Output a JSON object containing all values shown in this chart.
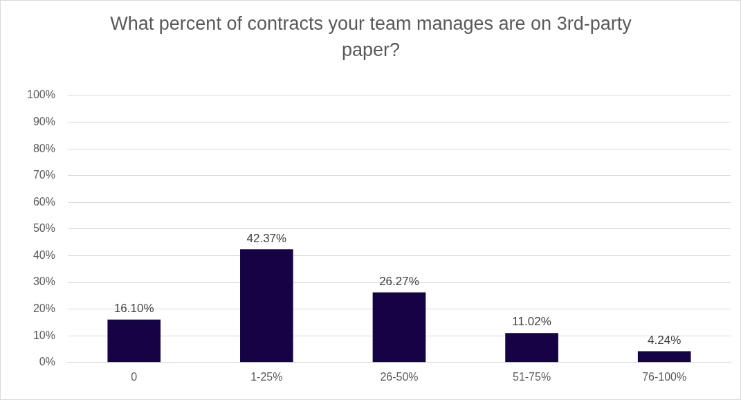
{
  "chart_data": {
    "type": "bar",
    "title": "What percent of contracts your team manages are on 3rd-party paper?",
    "categories": [
      "0",
      "1-25%",
      "26-50%",
      "51-75%",
      "76-100%"
    ],
    "values": [
      16.1,
      42.37,
      26.27,
      11.02,
      4.24
    ],
    "value_labels": [
      "16.10%",
      "42.37%",
      "26.27%",
      "11.02%",
      "4.24%"
    ],
    "color": "#160345",
    "ylim": [
      0,
      100
    ],
    "yticks": [
      {
        "value": 0,
        "label": "0%"
      },
      {
        "value": 10,
        "label": "10%"
      },
      {
        "value": 20,
        "label": "20%"
      },
      {
        "value": 30,
        "label": "30%"
      },
      {
        "value": 40,
        "label": "40%"
      },
      {
        "value": 50,
        "label": "50%"
      },
      {
        "value": 60,
        "label": "60%"
      },
      {
        "value": 70,
        "label": "70%"
      },
      {
        "value": 80,
        "label": "80%"
      },
      {
        "value": 90,
        "label": "90%"
      },
      {
        "value": 100,
        "label": "100%"
      }
    ],
    "grid": "y"
  }
}
